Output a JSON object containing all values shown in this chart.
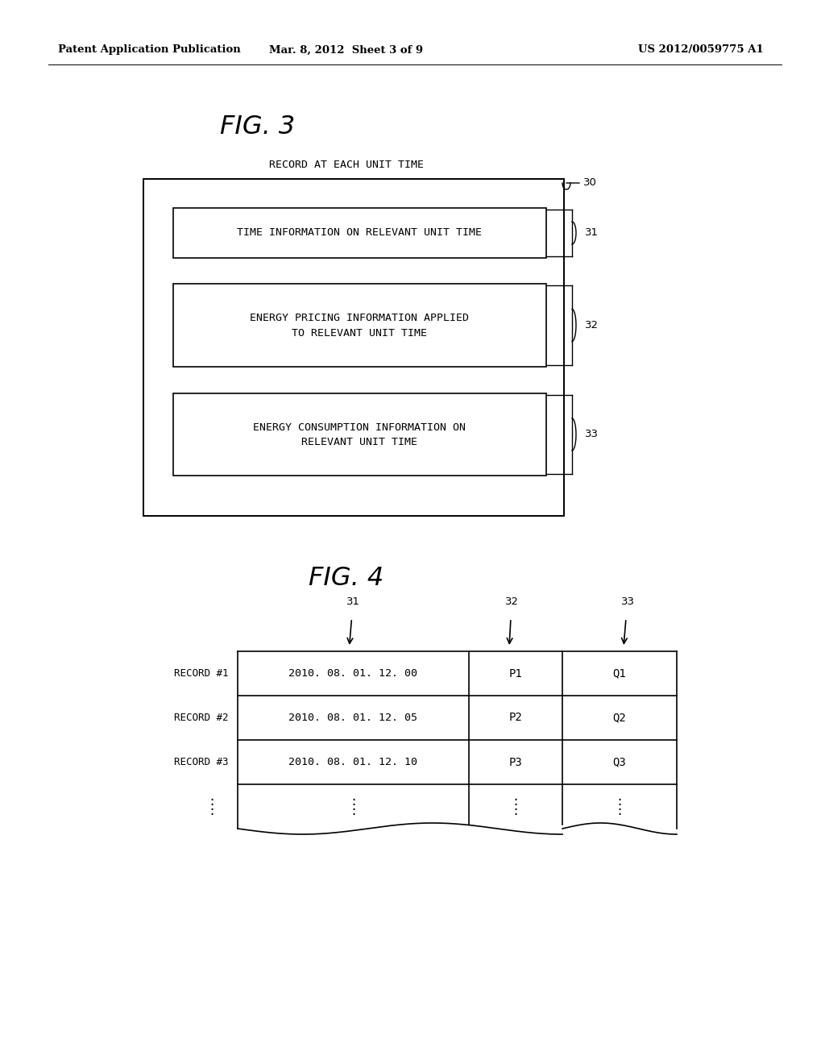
{
  "bg_color": "#ffffff",
  "header_text_left": "Patent Application Publication",
  "header_text_mid": "Mar. 8, 2012  Sheet 3 of 9",
  "header_text_right": "US 2012/0059775 A1",
  "fig3_title": "FIG. 3",
  "fig4_title": "FIG. 4",
  "fig3_label30": "30",
  "fig3_label31": "31",
  "fig3_label32": "32",
  "fig3_label33": "33",
  "fig3_outer_label": "RECORD AT EACH UNIT TIME",
  "fig3_box1_text": "TIME INFORMATION ON RELEVANT UNIT TIME",
  "fig3_box2_line1": "ENERGY PRICING INFORMATION APPLIED",
  "fig3_box2_line2": "TO RELEVANT UNIT TIME",
  "fig3_box3_line1": "ENERGY CONSUMPTION INFORMATION ON",
  "fig3_box3_line2": "RELEVANT UNIT TIME",
  "fig4_label31": "31",
  "fig4_label32": "32",
  "fig4_label33": "33",
  "fig4_record1_label": "RECORD #1",
  "fig4_record2_label": "RECORD #2",
  "fig4_record3_label": "RECORD #3",
  "fig4_row1_col1": "2010. 08. 01. 12. 00",
  "fig4_row1_col2": "P1",
  "fig4_row1_col3": "Q1",
  "fig4_row2_col1": "2010. 08. 01. 12. 05",
  "fig4_row2_col2": "P2",
  "fig4_row2_col3": "Q2",
  "fig4_row3_col1": "2010. 08. 01. 12. 10",
  "fig4_row3_col2": "P3",
  "fig4_row3_col3": "Q3"
}
